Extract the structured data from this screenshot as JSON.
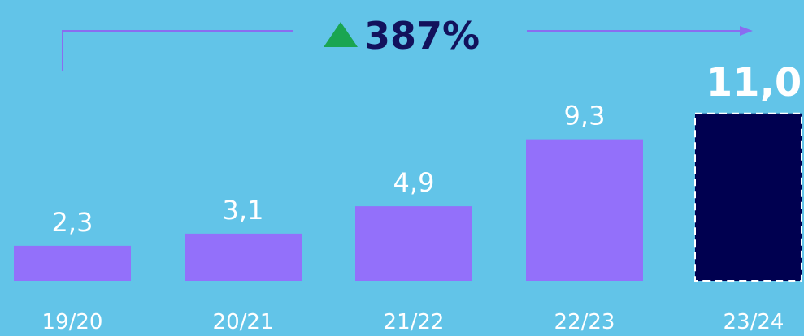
{
  "chart_data": {
    "type": "bar",
    "categories": [
      "19/20",
      "20/21",
      "21/22",
      "22/23",
      "23/24"
    ],
    "values": [
      2.3,
      3.1,
      4.9,
      9.3,
      11.0
    ],
    "value_labels": [
      "2,3",
      "3,1",
      "4,9",
      "9,3",
      "11,0"
    ],
    "colors": [
      "#9370fa",
      "#9370fa",
      "#9370fa",
      "#9370fa",
      "#000050"
    ],
    "annotation": "387%"
  }
}
